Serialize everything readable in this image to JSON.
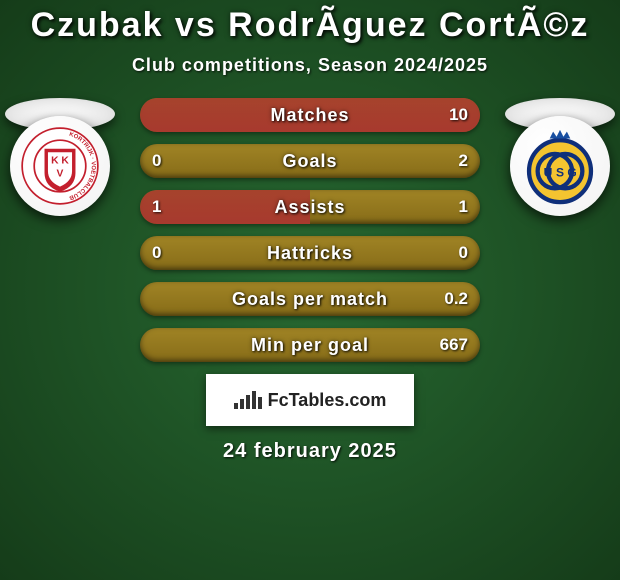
{
  "header": {
    "title": "Czubak vs RodrÃ­guez CortÃ©z",
    "title_fontsize": 34,
    "subtitle": "Club competitions, Season 2024/2025",
    "subtitle_fontsize": 18,
    "title_color": "#ffffff",
    "subtitle_color": "#ffffff"
  },
  "background": {
    "inner_color": "#276831",
    "outer_color": "#153c19"
  },
  "teams": {
    "left": {
      "name": "KV Kortrijk",
      "crest": {
        "shape": "shield",
        "primary_color": "#c31f2d",
        "secondary_color": "#ffffff",
        "text_top": "K K",
        "text_bottom": "V",
        "ring_text": "KORTRIJK · VOETBALCLUB"
      }
    },
    "right": {
      "name": "Union Saint-Gilloise",
      "crest": {
        "shape": "circle",
        "primary_color": "#0f2f7a",
        "secondary_color": "#f4c430",
        "crown_color": "#184fa1",
        "text": "U S G"
      }
    }
  },
  "stats": {
    "bar_track_color": "#876c18",
    "bar_track_light": "#a08425",
    "highlight_left_color": "#a83a2e",
    "highlight_right_color": "#c8aa3a",
    "label_fontsize": 18,
    "value_fontsize": 17,
    "rows": [
      {
        "label": "Matches",
        "left": "",
        "right": "10",
        "left_fill_pct": 100,
        "right_fill_pct": 0,
        "left_fill_color": "#a83a2e",
        "right_fill_color": "#876c18"
      },
      {
        "label": "Goals",
        "left": "0",
        "right": "2",
        "left_fill_pct": 0,
        "right_fill_pct": 0,
        "left_fill_color": "#876c18",
        "right_fill_color": "#876c18"
      },
      {
        "label": "Assists",
        "left": "1",
        "right": "1",
        "left_fill_pct": 50,
        "right_fill_pct": 0,
        "left_fill_color": "#a83a2e",
        "right_fill_color": "#876c18"
      },
      {
        "label": "Hattricks",
        "left": "0",
        "right": "0",
        "left_fill_pct": 0,
        "right_fill_pct": 0,
        "left_fill_color": "#876c18",
        "right_fill_color": "#876c18"
      },
      {
        "label": "Goals per match",
        "left": "",
        "right": "0.2",
        "left_fill_pct": 0,
        "right_fill_pct": 0,
        "left_fill_color": "#876c18",
        "right_fill_color": "#876c18"
      },
      {
        "label": "Min per goal",
        "left": "",
        "right": "667",
        "left_fill_pct": 0,
        "right_fill_pct": 0,
        "left_fill_color": "#876c18",
        "right_fill_color": "#876c18"
      }
    ]
  },
  "watermark": {
    "text": "FcTables.com",
    "text_color": "#222222",
    "background_color": "#ffffff",
    "bar_color": "#333333",
    "bar_heights": [
      6,
      10,
      14,
      18,
      12
    ]
  },
  "footer": {
    "date": "24 february 2025",
    "date_fontsize": 20,
    "date_color": "#ffffff"
  }
}
